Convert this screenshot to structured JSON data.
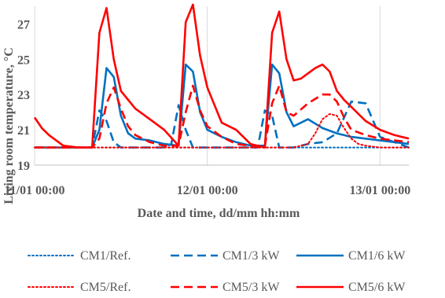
{
  "chart_data": {
    "type": "line",
    "title": "",
    "xlabel": "Date and time, dd/mm  hh:mm",
    "ylabel": "Living room temperature, °C",
    "x_unit": "hours",
    "xlim": [
      0,
      52
    ],
    "ylim": [
      19,
      28
    ],
    "x_ticks": [
      {
        "value": 0,
        "label": "11/01 00:00"
      },
      {
        "value": 24,
        "label": "12/01 00:00"
      },
      {
        "value": 48,
        "label": "13/01 00:00"
      }
    ],
    "y_ticks": [
      19,
      21,
      23,
      25,
      27
    ],
    "grid": {
      "vertical": true,
      "horizontal": false
    },
    "legend_position": "bottom",
    "series": [
      {
        "name": "CM1/Ref.",
        "color": "#0070C0",
        "dash": "dotted",
        "x": [
          0,
          2,
          4,
          6,
          8,
          10,
          12,
          14,
          16,
          18,
          20,
          22,
          24,
          26,
          28,
          30,
          32,
          34,
          36,
          38,
          40,
          42,
          44,
          46,
          48,
          50,
          52
        ],
        "y": [
          20.0,
          20.0,
          20.0,
          20.0,
          20.0,
          20.0,
          20.0,
          20.0,
          20.0,
          20.0,
          20.0,
          20.0,
          20.0,
          20.0,
          20.0,
          20.0,
          20.0,
          20.0,
          20.0,
          20.0,
          20.0,
          20.0,
          20.0,
          20.0,
          20.0,
          20.0,
          20.0
        ]
      },
      {
        "name": "CM1/3 kW",
        "color": "#0070C0",
        "dash": "dashed",
        "x": [
          0,
          4,
          7,
          8,
          9,
          10,
          11,
          12,
          14,
          16,
          18,
          19,
          20,
          21,
          22,
          24,
          26,
          28,
          30,
          31,
          32,
          33,
          34,
          36,
          38,
          40,
          42,
          44,
          46,
          48,
          50,
          52
        ],
        "y": [
          20.0,
          20.0,
          20.0,
          20.0,
          22.1,
          21.5,
          20.3,
          20.0,
          20.0,
          20.0,
          20.0,
          20.2,
          22.4,
          21.0,
          20.0,
          20.0,
          20.0,
          20.0,
          20.0,
          20.0,
          22.1,
          21.8,
          20.0,
          20.0,
          20.2,
          20.3,
          20.8,
          22.6,
          22.5,
          20.6,
          20.3,
          20.0
        ]
      },
      {
        "name": "CM1/6 kW",
        "color": "#0070C0",
        "dash": "solid",
        "x": [
          0,
          2,
          4,
          6,
          8,
          9,
          10,
          11,
          12,
          13,
          14,
          16,
          18,
          20,
          21,
          22,
          23,
          24,
          26,
          28,
          30,
          32,
          33,
          34,
          35,
          36,
          37,
          38,
          40,
          42,
          44,
          46,
          48,
          50,
          52
        ],
        "y": [
          20.0,
          20.0,
          20.0,
          20.0,
          20.0,
          21.0,
          24.5,
          24.0,
          21.8,
          20.8,
          20.5,
          20.4,
          20.2,
          20.1,
          24.7,
          24.3,
          22.0,
          21.0,
          20.6,
          20.3,
          20.1,
          20.1,
          24.7,
          24.2,
          22.0,
          21.2,
          21.4,
          21.6,
          21.1,
          20.8,
          20.6,
          20.5,
          20.4,
          20.3,
          20.2
        ]
      },
      {
        "name": "CM5/Ref.",
        "color": "#FF0000",
        "dash": "dotted",
        "x": [
          0,
          2,
          4,
          6,
          8,
          10,
          12,
          14,
          16,
          18,
          20,
          22,
          24,
          26,
          28,
          30,
          32,
          34,
          36,
          38,
          39,
          40,
          41,
          42,
          43,
          44,
          45,
          46,
          48,
          50,
          52
        ],
        "y": [
          20.0,
          20.0,
          20.0,
          20.0,
          20.0,
          20.0,
          20.0,
          20.0,
          20.0,
          20.0,
          20.0,
          20.0,
          20.0,
          20.0,
          20.0,
          20.0,
          20.0,
          20.0,
          20.0,
          20.2,
          20.8,
          21.6,
          21.9,
          21.8,
          21.1,
          20.5,
          20.2,
          20.1,
          20.0,
          20.0,
          20.0
        ]
      },
      {
        "name": "CM5/3 kW",
        "color": "#FF0000",
        "dash": "dashed",
        "x": [
          0,
          2,
          4,
          6,
          8,
          9,
          10,
          11,
          12,
          13,
          14,
          16,
          18,
          20,
          21,
          22,
          23,
          24,
          26,
          28,
          30,
          32,
          33,
          34,
          35,
          36,
          38,
          40,
          41,
          42,
          43,
          44,
          46,
          48,
          50,
          52
        ],
        "y": [
          20.0,
          20.0,
          20.0,
          20.0,
          20.0,
          20.5,
          22.5,
          23.4,
          22.2,
          21.2,
          20.7,
          20.3,
          20.1,
          20.1,
          22.0,
          23.5,
          22.1,
          21.2,
          20.6,
          20.2,
          20.1,
          20.1,
          22.5,
          23.5,
          22.0,
          21.8,
          22.5,
          23.0,
          23.0,
          22.6,
          21.7,
          21.0,
          20.7,
          20.5,
          20.4,
          20.3
        ]
      },
      {
        "name": "CM5/6 kW",
        "color": "#FF0000",
        "dash": "solid",
        "x": [
          0,
          1,
          2,
          4,
          6,
          8,
          9,
          10,
          11,
          12,
          13,
          14,
          16,
          18,
          20,
          21,
          22,
          23,
          24,
          26,
          28,
          30,
          32,
          33,
          34,
          35,
          36,
          37,
          38,
          39,
          40,
          41,
          42,
          43,
          44,
          46,
          48,
          50,
          52
        ],
        "y": [
          21.7,
          21.1,
          20.7,
          20.1,
          20.0,
          20.0,
          26.5,
          27.9,
          25.0,
          23.2,
          22.7,
          22.2,
          21.6,
          21.0,
          20.1,
          27.1,
          28.1,
          25.2,
          23.4,
          21.4,
          21.0,
          20.2,
          20.0,
          26.5,
          27.7,
          25.0,
          23.8,
          23.9,
          24.2,
          24.5,
          24.7,
          24.3,
          23.2,
          22.7,
          22.3,
          21.5,
          21.0,
          20.7,
          20.5
        ]
      }
    ]
  }
}
